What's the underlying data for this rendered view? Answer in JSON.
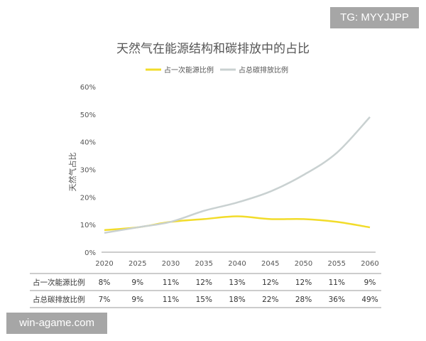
{
  "chart_data": {
    "type": "line",
    "title": "天然气在能源结构和碳排放中的占比",
    "ylabel": "天然气占比",
    "xlabel": "",
    "ylim": [
      0,
      60
    ],
    "yticks": [
      "0%",
      "10%",
      "20%",
      "30%",
      "40%",
      "50%",
      "60%"
    ],
    "categories": [
      "2020",
      "2025",
      "2030",
      "2035",
      "2040",
      "2045",
      "2050",
      "2055",
      "2060"
    ],
    "grid": false,
    "legend": "top",
    "series": [
      {
        "name": "占一次能源比例",
        "color": "#f2dc2a",
        "values": [
          8,
          9,
          11,
          12,
          13,
          12,
          12,
          11,
          9
        ],
        "labels": [
          "8%",
          "9%",
          "11%",
          "12%",
          "13%",
          "12%",
          "12%",
          "11%",
          "9%"
        ]
      },
      {
        "name": "占总碳排放比例",
        "color": "#c9d1d1",
        "values": [
          7,
          9,
          11,
          15,
          18,
          22,
          28,
          36,
          49
        ],
        "labels": [
          "7%",
          "9%",
          "11%",
          "15%",
          "18%",
          "22%",
          "28%",
          "36%",
          "49%"
        ]
      }
    ]
  },
  "watermarks": {
    "top": "TG: MYYJJPP",
    "bottom": "win-agame.com"
  }
}
